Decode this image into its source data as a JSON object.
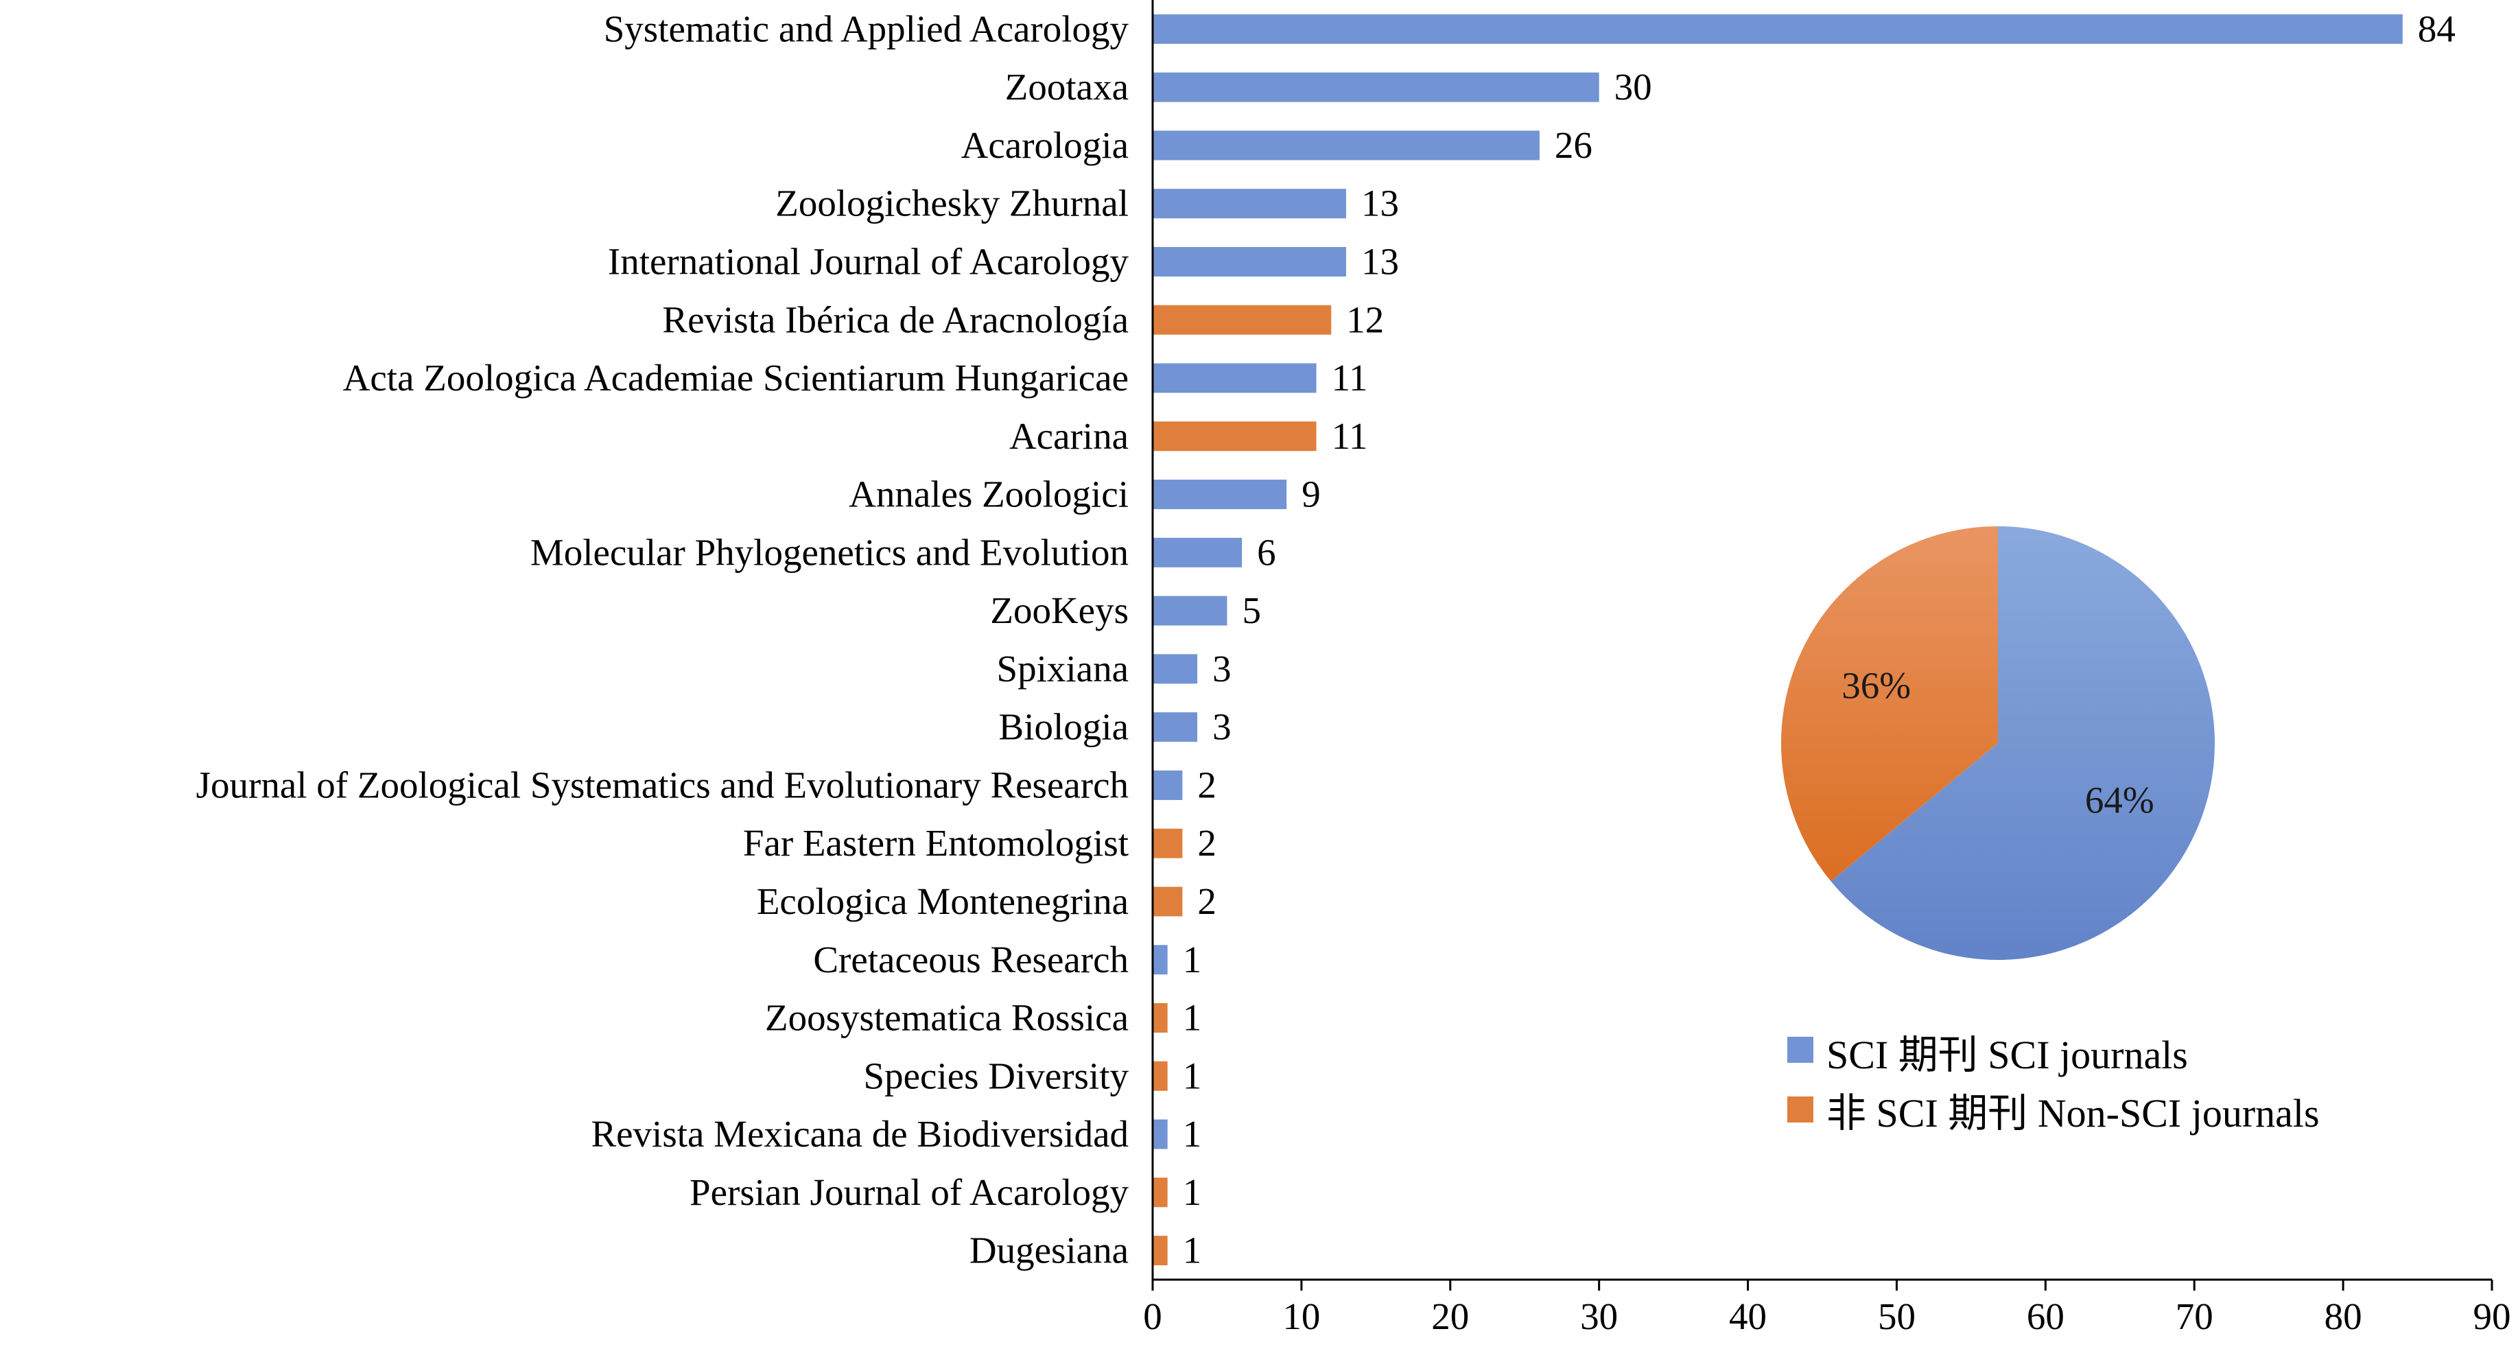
{
  "chart_data": [
    {
      "type": "bar",
      "orientation": "horizontal",
      "categories": [
        "Systematic and Applied Acarology",
        "Zootaxa",
        "Acarologia",
        "Zoologichesky Zhurnal",
        "International Journal of Acarology",
        "Revista Ibérica de Aracnología",
        "Acta Zoologica Academiae Scientiarum Hungaricae",
        "Acarina",
        "Annales Zoologici",
        "Molecular Phylogenetics and Evolution",
        "ZooKeys",
        "Spixiana",
        "Biologia",
        "Journal of Zoological Systematics and Evolutionary Research",
        "Far Eastern Entomologist",
        "Ecologica Montenegrina",
        "Cretaceous Research",
        "Zoosystematica Rossica",
        "Species Diversity",
        "Revista Mexicana de Biodiversidad",
        "Persian Journal of Acarology",
        "Dugesiana"
      ],
      "values": [
        84,
        30,
        26,
        13,
        13,
        12,
        11,
        11,
        9,
        6,
        5,
        3,
        3,
        2,
        2,
        2,
        1,
        1,
        1,
        1,
        1,
        1
      ],
      "group": [
        "sci",
        "sci",
        "sci",
        "sci",
        "sci",
        "non",
        "sci",
        "non",
        "sci",
        "sci",
        "sci",
        "sci",
        "sci",
        "sci",
        "non",
        "non",
        "sci",
        "non",
        "non",
        "sci",
        "non",
        "non"
      ],
      "xlim": [
        0,
        90
      ],
      "xticks": [
        0,
        10,
        20,
        30,
        40,
        50,
        60,
        70,
        80,
        90
      ],
      "title": "",
      "xlabel": "",
      "ylabel": "",
      "grid": false
    },
    {
      "type": "pie",
      "slices": [
        {
          "label": "SCI 期刊 SCI journals",
          "value": 64,
          "text": "64%",
          "group": "sci"
        },
        {
          "label": "非 SCI 期刊 Non-SCI journals",
          "value": 36,
          "text": "36%",
          "group": "non"
        }
      ],
      "legend_position": "bottom-right"
    }
  ],
  "colors": {
    "sci": "#7294D4",
    "non": "#E07F3B",
    "sci_light": "#8AA9DD",
    "sci_dark": "#6283C8",
    "non_light": "#E99563",
    "non_dark": "#DB6E22",
    "axis": "#000000"
  }
}
